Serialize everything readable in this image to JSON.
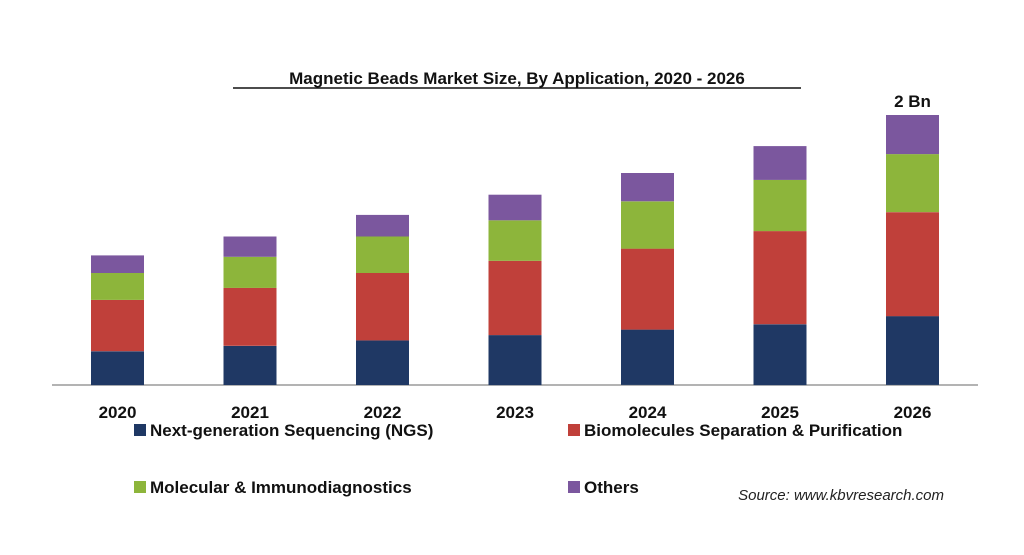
{
  "chart_data": {
    "type": "bar",
    "stacked": true,
    "title": "Magnetic Beads Market Size, By Application, 2020 - 2026",
    "categories": [
      "2020",
      "2021",
      "2022",
      "2023",
      "2024",
      "2025",
      "2026"
    ],
    "series": [
      {
        "name": "Next-generation Sequencing (NGS)",
        "color": "#1f3864",
        "values": [
          0.25,
          0.29,
          0.33,
          0.37,
          0.41,
          0.45,
          0.51
        ]
      },
      {
        "name": "Biomolecules Separation & Purification",
        "color": "#c0403a",
        "values": [
          0.38,
          0.43,
          0.5,
          0.55,
          0.6,
          0.69,
          0.77
        ]
      },
      {
        "name": "Molecular & Immunodiagnostics",
        "color": "#8db53b",
        "values": [
          0.2,
          0.23,
          0.27,
          0.3,
          0.35,
          0.38,
          0.43
        ]
      },
      {
        "name": "Others",
        "color": "#7b579e",
        "values": [
          0.13,
          0.15,
          0.16,
          0.19,
          0.21,
          0.25,
          0.29
        ]
      }
    ],
    "annotations": [
      {
        "category": "2026",
        "text": "2 Bn"
      }
    ],
    "ylim": [
      0,
      2.1
    ],
    "grid": false,
    "legend_position": "bottom",
    "source": "Source: www.kbvresearch.com"
  }
}
